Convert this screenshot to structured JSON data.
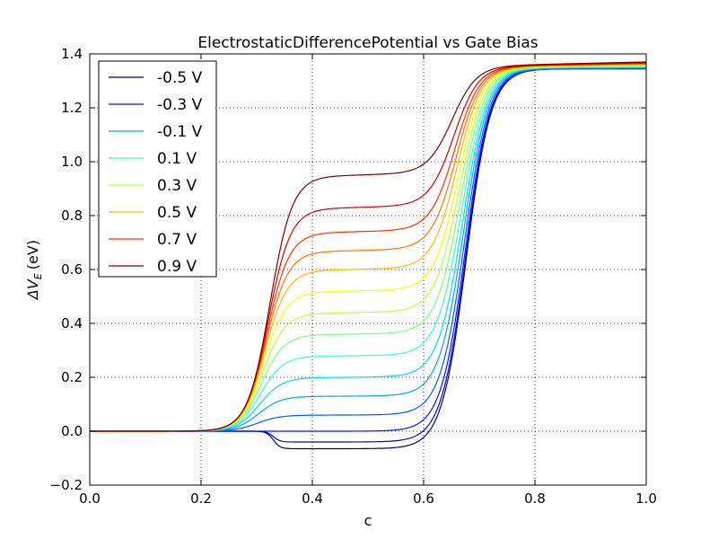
{
  "chart_data": {
    "type": "line",
    "title": "ElectrostaticDifferencePotential vs Gate Bias",
    "xlabel": "c",
    "ylabel_symbol": "ΔV",
    "ylabel_subscript": "E",
    "ylabel_unit": "(eV)",
    "xlim": [
      0.0,
      1.0
    ],
    "ylim": [
      -0.2,
      1.4
    ],
    "x_ticks": [
      0.0,
      0.2,
      0.4,
      0.6,
      0.8,
      1.0
    ],
    "x_tick_labels": [
      "0.0",
      "0.2",
      "0.4",
      "0.6",
      "0.8",
      "1.0"
    ],
    "y_ticks": [
      -0.2,
      0.0,
      0.2,
      0.4,
      0.6,
      0.8,
      1.0,
      1.2,
      1.4
    ],
    "y_tick_labels": [
      "−0.2",
      "0.0",
      "0.2",
      "0.4",
      "0.6",
      "0.8",
      "1.0",
      "1.2",
      "1.4"
    ],
    "grid": true,
    "legend_position": "top-left",
    "legend": [
      {
        "name": "-0.5 V",
        "color": "#00007f"
      },
      {
        "name": "-0.3 V",
        "color": "#0010ff"
      },
      {
        "name": "-0.1 V",
        "color": "#00a4ff"
      },
      {
        "name": "0.1 V",
        "color": "#3cffba"
      },
      {
        "name": "0.3 V",
        "color": "#baff3c"
      },
      {
        "name": "0.5 V",
        "color": "#ffb900"
      },
      {
        "name": "0.7 V",
        "color": "#ff3000"
      },
      {
        "name": "0.9 V",
        "color": "#7f0000"
      }
    ],
    "series": [
      {
        "color": "#00007f",
        "plateau": -0.065,
        "end": 1.345
      },
      {
        "color": "#000ab7",
        "plateau": -0.04,
        "end": 1.345
      },
      {
        "color": "#0010ff",
        "plateau": 0.0,
        "end": 1.345
      },
      {
        "color": "#0058ff",
        "plateau": 0.06,
        "end": 1.345
      },
      {
        "color": "#00a4ff",
        "plateau": 0.13,
        "end": 1.345
      },
      {
        "color": "#00dcf6",
        "plateau": 0.2,
        "end": 1.345
      },
      {
        "color": "#3cffba",
        "plateau": 0.28,
        "end": 1.345
      },
      {
        "color": "#7dff7a",
        "plateau": 0.36,
        "end": 1.345
      },
      {
        "color": "#baff3c",
        "plateau": 0.44,
        "end": 1.345
      },
      {
        "color": "#f0ff06",
        "plateau": 0.52,
        "end": 1.345
      },
      {
        "color": "#ffb900",
        "plateau": 0.6,
        "end": 1.345
      },
      {
        "color": "#ff7400",
        "plateau": 0.67,
        "end": 1.345
      },
      {
        "color": "#ff3000",
        "plateau": 0.74,
        "end": 1.345
      },
      {
        "color": "#d10000",
        "plateau": 0.83,
        "end": 1.345
      },
      {
        "color": "#7f0000",
        "plateau": 0.95,
        "end": 1.345
      }
    ]
  }
}
